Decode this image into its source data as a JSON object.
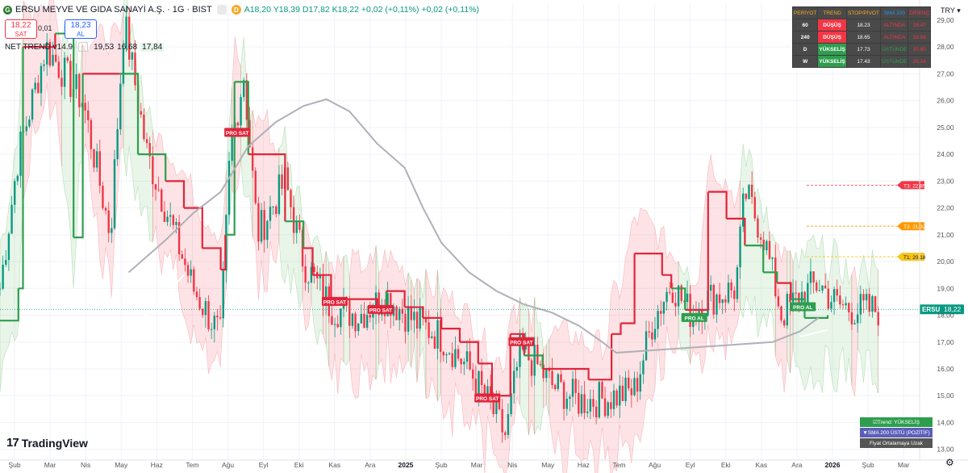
{
  "header": {
    "title": "ERSU MEYVE VE GIDA SANAYİ A.Ş. · 1G · BIST",
    "badge": "D",
    "ohlc": "A18,20 Y18,39 D17,82 K18,22 +0,02 (+0,11%) +0,02 (+0,11%)"
  },
  "trade": {
    "sell_price": "18,22",
    "sell_label": "SAT",
    "spread": "0,01",
    "buy_price": "18,23",
    "buy_label": "AL"
  },
  "indicator": {
    "name": "NET TREND v14.9",
    "v1": "19,53",
    "v2": "16,68",
    "v3": "17,84"
  },
  "currency": "TRY",
  "table": {
    "headers": [
      "PERİYOT",
      "TREND",
      "STOP/PİVOT",
      "SMA 200",
      "DİRENÇ"
    ],
    "rows": [
      [
        "60",
        "DÜŞÜŞ",
        "18.23",
        "ALTINDA",
        "18.47"
      ],
      [
        "240",
        "DÜŞÜŞ",
        "18.65",
        "ALTINDA",
        "19.96"
      ],
      [
        "D",
        "YÜKSELİŞ",
        "17.73",
        "ÜSTÜNDE",
        "20.60"
      ],
      [
        "W",
        "YÜKSELİŞ",
        "17.43",
        "ÜSTÜNDE",
        "25.34"
      ]
    ]
  },
  "targets": [
    {
      "label": "T3: 22.85",
      "price": 22.85,
      "color": "#f23645"
    },
    {
      "label": "T2: 21.32",
      "price": 21.32,
      "color": "#ff9800"
    },
    {
      "label": "T1: 20.18",
      "price": 20.18,
      "color": "#f5c518"
    }
  ],
  "price_tag": {
    "symbol": "ERSU",
    "value": "18,22",
    "price": 18.22
  },
  "signals": [
    {
      "label": "PRO SAT",
      "t": 0.258,
      "price": 24.8,
      "type": "sell"
    },
    {
      "label": "PRO SAT",
      "t": 0.364,
      "price": 18.5,
      "type": "sell"
    },
    {
      "label": "PRO SAT",
      "t": 0.414,
      "price": 18.2,
      "type": "sell"
    },
    {
      "label": "PRO SAT",
      "t": 0.567,
      "price": 17.0,
      "type": "sell"
    },
    {
      "label": "PRO SAT",
      "t": 0.53,
      "price": 14.9,
      "type": "sell"
    },
    {
      "label": "PRO AL",
      "t": 0.755,
      "price": 17.9,
      "type": "buy"
    },
    {
      "label": "PRO AL",
      "t": 0.873,
      "price": 18.3,
      "type": "buy"
    }
  ],
  "status": [
    {
      "label": "Trend: YÜKSELİŞ",
      "bg": "#2e9e4e",
      "icon": "checkbox-icon"
    },
    {
      "label": "SMA 200 ÜSTÜ (POZİTİF)",
      "bg": "#5c5fb8",
      "icon": "triangle-down-icon"
    },
    {
      "label": "Fiyat Ortalamaya Uzak",
      "bg": "#555555",
      "icon": ""
    }
  ],
  "brand": "TradingView",
  "chart_data": {
    "type": "candlestick",
    "y_ticks": [
      13,
      14,
      15,
      16,
      17,
      18,
      19,
      20,
      21,
      22,
      23,
      24,
      25,
      26,
      27,
      28,
      29
    ],
    "y_tick_labels": [
      "13,00",
      "14,00",
      "15,00",
      "16,00",
      "17,00",
      "18,00",
      "19,00",
      "20,00",
      "21,00",
      "22,00",
      "23,00",
      "24,00",
      "25,00",
      "26,00",
      "27,00",
      "28,00",
      "29,00"
    ],
    "x_ticks": [
      "Şub",
      "Mar",
      "Nis",
      "May",
      "Haz",
      "Tem",
      "Ağu",
      "Eyl",
      "Eki",
      "Kas",
      "Ara",
      "2025",
      "Şub",
      "Mar",
      "Nis",
      "May",
      "Haz",
      "Tem",
      "Ağu",
      "Eyl",
      "Eki",
      "Kas",
      "Ara",
      "2026",
      "Şub",
      "Mar"
    ],
    "ylim": [
      12.6,
      29.6
    ],
    "price_path": [
      [
        0,
        19
      ],
      [
        0.02,
        24
      ],
      [
        0.05,
        28
      ],
      [
        0.09,
        26
      ],
      [
        0.12,
        21
      ],
      [
        0.135,
        29
      ],
      [
        0.16,
        24
      ],
      [
        0.19,
        21
      ],
      [
        0.21,
        19
      ],
      [
        0.24,
        17.2
      ],
      [
        0.25,
        24
      ],
      [
        0.265,
        27
      ],
      [
        0.28,
        21
      ],
      [
        0.31,
        23
      ],
      [
        0.33,
        20
      ],
      [
        0.36,
        18.3
      ],
      [
        0.39,
        18.0
      ],
      [
        0.42,
        18.7
      ],
      [
        0.45,
        17.8
      ],
      [
        0.48,
        17.2
      ],
      [
        0.51,
        16.0
      ],
      [
        0.53,
        14.8
      ],
      [
        0.55,
        13.5
      ],
      [
        0.565,
        16.6
      ],
      [
        0.58,
        16.3
      ],
      [
        0.6,
        15.4
      ],
      [
        0.63,
        14.8
      ],
      [
        0.66,
        14.9
      ],
      [
        0.69,
        15.2
      ],
      [
        0.71,
        17.8
      ],
      [
        0.73,
        19.2
      ],
      [
        0.75,
        18.1
      ],
      [
        0.77,
        18.6
      ],
      [
        0.8,
        19.0
      ],
      [
        0.81,
        22.6
      ],
      [
        0.83,
        21.0
      ],
      [
        0.85,
        18.0
      ],
      [
        0.87,
        18.7
      ],
      [
        0.89,
        19.2
      ],
      [
        0.91,
        18.4
      ],
      [
        0.93,
        18.2
      ],
      [
        0.95,
        18.2
      ]
    ],
    "stop_path": [
      [
        0,
        17.8
      ],
      [
        0.02,
        19
      ],
      [
        0.025,
        28
      ],
      [
        0.06,
        28.5
      ],
      [
        0.08,
        20.9
      ],
      [
        0.09,
        27
      ],
      [
        0.13,
        27
      ],
      [
        0.15,
        24
      ],
      [
        0.18,
        23
      ],
      [
        0.2,
        22
      ],
      [
        0.22,
        20.5
      ],
      [
        0.24,
        19.7
      ],
      [
        0.245,
        21
      ],
      [
        0.255,
        26.7
      ],
      [
        0.27,
        24
      ],
      [
        0.29,
        24
      ],
      [
        0.31,
        21.5
      ],
      [
        0.33,
        20.5
      ],
      [
        0.34,
        19.5
      ],
      [
        0.36,
        18.6
      ],
      [
        0.38,
        18.6
      ],
      [
        0.4,
        18.6
      ],
      [
        0.41,
        18.2
      ],
      [
        0.42,
        18.9
      ],
      [
        0.44,
        18.3
      ],
      [
        0.46,
        17.9
      ],
      [
        0.48,
        17.5
      ],
      [
        0.5,
        17.0
      ],
      [
        0.52,
        16.2
      ],
      [
        0.535,
        15.0
      ],
      [
        0.55,
        15.0
      ],
      [
        0.555,
        17.3
      ],
      [
        0.57,
        16.5
      ],
      [
        0.59,
        16.0
      ],
      [
        0.62,
        16.0
      ],
      [
        0.64,
        15.6
      ],
      [
        0.66,
        15.6
      ],
      [
        0.665,
        17.3
      ],
      [
        0.675,
        17.7
      ],
      [
        0.69,
        20.3
      ],
      [
        0.7,
        20.3
      ],
      [
        0.72,
        19.5
      ],
      [
        0.73,
        19.0
      ],
      [
        0.745,
        18.2
      ],
      [
        0.76,
        18.2
      ],
      [
        0.77,
        22.6
      ],
      [
        0.79,
        21.6
      ],
      [
        0.81,
        20.6
      ],
      [
        0.83,
        19.6
      ],
      [
        0.845,
        19.2
      ],
      [
        0.86,
        18.6
      ],
      [
        0.875,
        17.9
      ],
      [
        0.89,
        17.9
      ],
      [
        0.9,
        18.0
      ]
    ],
    "sma_path": [
      [
        0.14,
        19.6
      ],
      [
        0.18,
        20.8
      ],
      [
        0.21,
        21.8
      ],
      [
        0.24,
        22.6
      ],
      [
        0.27,
        24.3
      ],
      [
        0.3,
        25.2
      ],
      [
        0.33,
        25.8
      ],
      [
        0.355,
        26.05
      ],
      [
        0.38,
        25.6
      ],
      [
        0.41,
        24.4
      ],
      [
        0.44,
        23.5
      ],
      [
        0.46,
        22.0
      ],
      [
        0.48,
        20.7
      ],
      [
        0.51,
        19.6
      ],
      [
        0.54,
        18.9
      ],
      [
        0.57,
        18.4
      ],
      [
        0.6,
        18.1
      ],
      [
        0.63,
        17.6
      ],
      [
        0.655,
        17.0
      ],
      [
        0.67,
        16.6
      ],
      [
        0.84,
        17.0
      ],
      [
        0.87,
        17.4
      ],
      [
        0.89,
        17.9
      ]
    ]
  }
}
